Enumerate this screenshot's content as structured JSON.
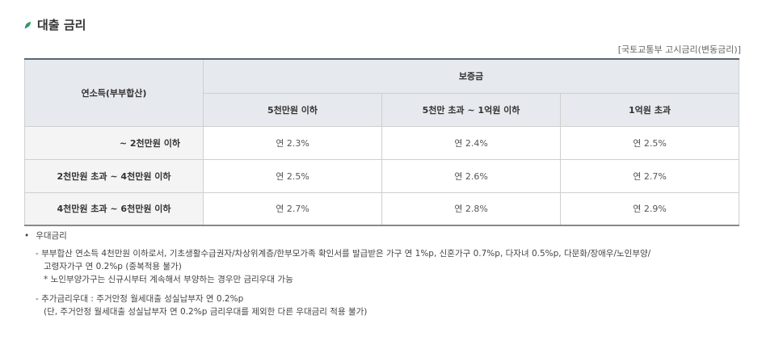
{
  "section": {
    "title": "대출 금리",
    "icon": "leaf-icon"
  },
  "source_note": "[국토교통부 고시금리(변동금리)]",
  "table": {
    "income_header": "연소득(부부합산)",
    "deposit_header": "보증금",
    "deposit_columns": [
      "5천만원 이하",
      "5천만 초과 ~ 1억원 이하",
      "1억원 초과"
    ],
    "rows": [
      {
        "income": "~ 2천만원 이하",
        "rates": [
          "연 2.3%",
          "연 2.4%",
          "연 2.5%"
        ]
      },
      {
        "income": "2천만원 초과  ~ 4천만원 이하",
        "rates": [
          "연 2.5%",
          "연 2.6%",
          "연 2.7%"
        ]
      },
      {
        "income": "4천만원 초과  ~ 6천만원 이하",
        "rates": [
          "연 2.7%",
          "연 2.8%",
          "연 2.9%"
        ]
      }
    ]
  },
  "notes": {
    "bullet_label": "우대금리",
    "items": [
      {
        "line1": "- 부부합산 연소득 4천만원 이하로서, 기초생활수급권자/차상위계층/한부모가족 확인서를 발급받은 가구 연 1%p, 신혼가구 0.7%p, 다자녀 0.5%p, 다문화/장애우/노인부양/",
        "line2": "고령자가구 연 0.2%p (중복적용 불가)",
        "line3": "* 노인부양가구는 신규시부터 계속해서 부양하는 경우만 금리우대 가능"
      },
      {
        "line1": "- 추가금리우대 : 주거안정 월세대출 성실납부자 연 0.2%p",
        "line2": "(단, 주거안정 월세대출 성실납부자 연 0.2%p 금리우대를 제외한 다른 우대금리 적용 불가)"
      }
    ]
  },
  "colors": {
    "header_bg": "#e6e9ee",
    "row_header_bg": "#f4f4f4",
    "icon_green": "#2e9e5b",
    "icon_blue": "#3b7fc4"
  }
}
